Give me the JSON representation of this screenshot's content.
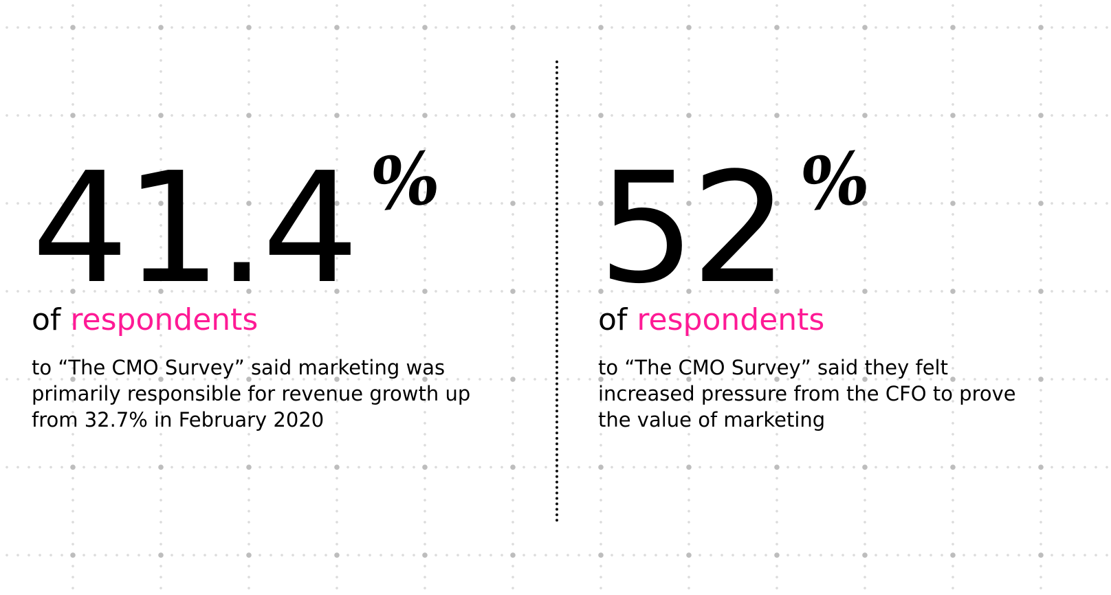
{
  "accent_color": "#fe1a95",
  "stats": [
    {
      "value": "41.4",
      "unit": "%",
      "lead": "of ",
      "highlight": "respondents",
      "description_lines": [
        "to “The CMO Survey” said marketing was",
        "primarily responsible for revenue growth up",
        "from 32.7% in February 2020"
      ]
    },
    {
      "value": "52",
      "unit": "%",
      "lead": "of ",
      "highlight": "respondents",
      "description_lines": [
        "to “The CMO Survey” said they felt",
        "increased pressure from the CFO to prove",
        "the value of marketing"
      ]
    }
  ]
}
